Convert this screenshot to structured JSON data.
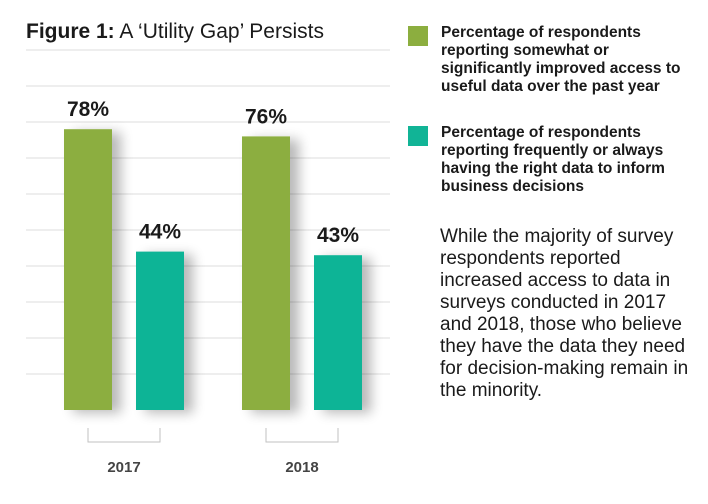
{
  "title": {
    "figure_label": "Figure 1:",
    "text": "A ‘Utility Gap’ Persists"
  },
  "legend": [
    {
      "text": "Percentage of respondents reporting somewhat or significantly improved access to useful data over the past year",
      "color": "#8cae3f"
    },
    {
      "text": "Percentage of respondents reporting frequently or always having the right data to inform business decisions",
      "color": "#11b496"
    }
  ],
  "note": "While the majority of survey respondents reported increased access to data in surveys conducted in 2017 and 2018, those who believe they have the data they need for decision-making remain in the minority.",
  "chart_data": {
    "type": "bar",
    "categories": [
      "2017",
      "2018"
    ],
    "series": [
      {
        "name": "Percentage of respondents reporting somewhat or significantly improved access to useful data over the past year",
        "values": [
          78,
          76
        ],
        "labels": [
          "78%",
          "76%"
        ],
        "color": "#8cae3f"
      },
      {
        "name": "Percentage of respondents reporting frequently or always having the right data to inform business decisions",
        "values": [
          44,
          43
        ],
        "labels": [
          "44%",
          "43%"
        ],
        "color": "#11b496"
      }
    ],
    "ylim": [
      0,
      100
    ],
    "grid": true,
    "legend_position": "right"
  }
}
